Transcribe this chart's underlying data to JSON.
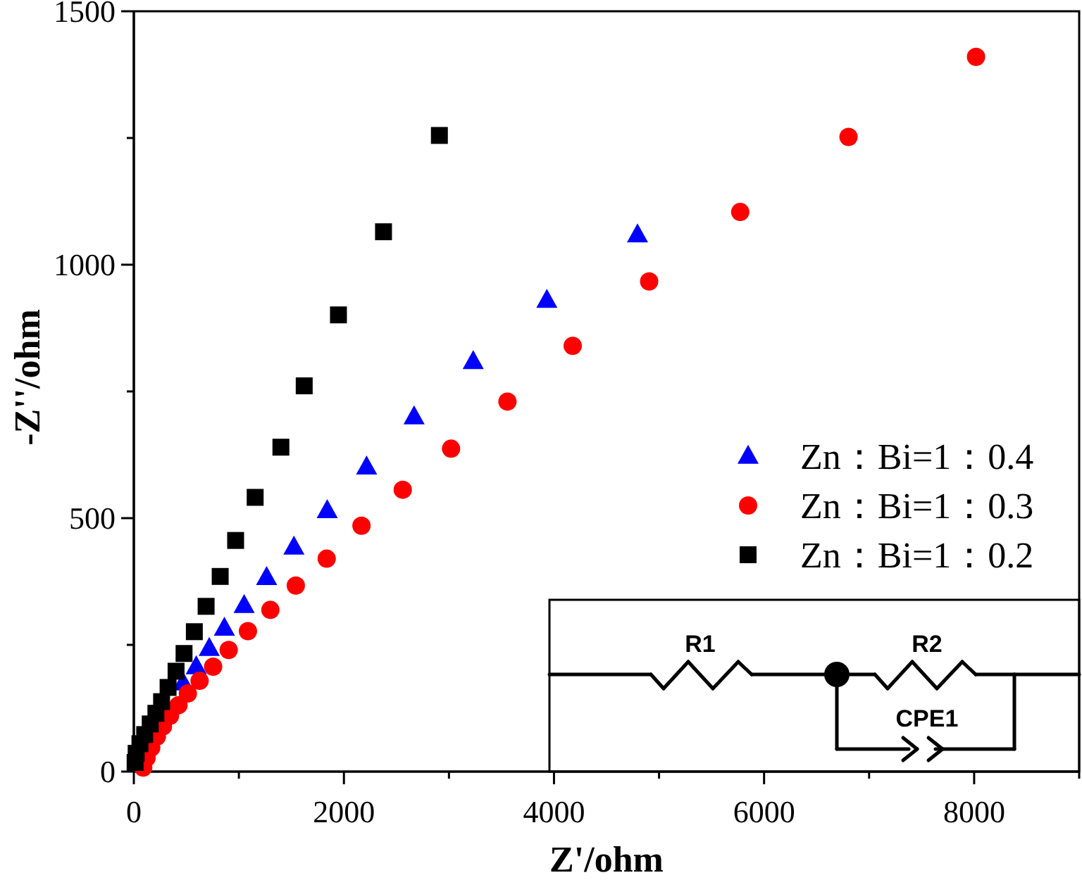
{
  "chart_data": {
    "type": "scatter",
    "xlabel": "Z'/ohm",
    "ylabel": "-Z''/ohm",
    "xlim": [
      0,
      9000
    ],
    "ylim": [
      0,
      1500
    ],
    "xticks": [
      0,
      {
        "value": 1000,
        "label": null
      },
      2000,
      {
        "value": 3000,
        "label": null
      },
      4000,
      {
        "value": 5000,
        "label": null
      },
      6000,
      {
        "value": 7000,
        "label": null
      },
      8000,
      {
        "value": 9000,
        "label": null
      }
    ],
    "yticks": [
      0,
      {
        "value": 250,
        "label": null
      },
      500,
      {
        "value": 750,
        "label": null
      },
      1000,
      {
        "value": 1250,
        "label": null
      },
      1500
    ],
    "legend": "right",
    "annotations": [
      "R1",
      "R2",
      "CPE1"
    ],
    "series": [
      {
        "name": "Zn：Bi=1：0.4",
        "color": "#0000ff",
        "marker": "triangle",
        "x": [
          4795,
          3932,
          3231,
          2668,
          2216,
          1841,
          1524,
          1264,
          1050,
          862,
          718,
          594,
          469
        ],
        "values": [
          1059,
          930,
          809,
          700,
          601,
          515,
          443,
          383,
          328,
          283,
          243,
          207,
          175
        ]
      },
      {
        "name": "Zn：Bi=1：0.3",
        "color": "#ff0000",
        "marker": "circle",
        "x": [
          8018,
          6804,
          5773,
          4906,
          4178,
          3557,
          3020,
          2560,
          2167,
          1836,
          1542,
          1300,
          1086,
          903,
          755,
          626,
          514,
          425,
          344,
          277,
          219,
          165,
          121,
          89
        ],
        "values": [
          1410,
          1252,
          1104,
          967,
          840,
          730,
          637,
          556,
          485,
          420,
          367,
          319,
          277,
          240,
          207,
          179,
          154,
          131,
          110,
          89,
          69,
          47,
          27,
          8
        ]
      },
      {
        "name": "Zn：Bi=1：0.2",
        "color": "#000000",
        "marker": "square",
        "x": [
          2909,
          2377,
          1948,
          1622,
          1400,
          1155,
          969,
          822,
          688,
          576,
          478,
          402,
          326,
          264,
          210,
          156,
          103,
          58,
          22,
          12
        ],
        "values": [
          1255,
          1065,
          901,
          761,
          640,
          541,
          456,
          385,
          326,
          276,
          233,
          198,
          166,
          138,
          115,
          94,
          73,
          55,
          36,
          18
        ]
      }
    ]
  }
}
